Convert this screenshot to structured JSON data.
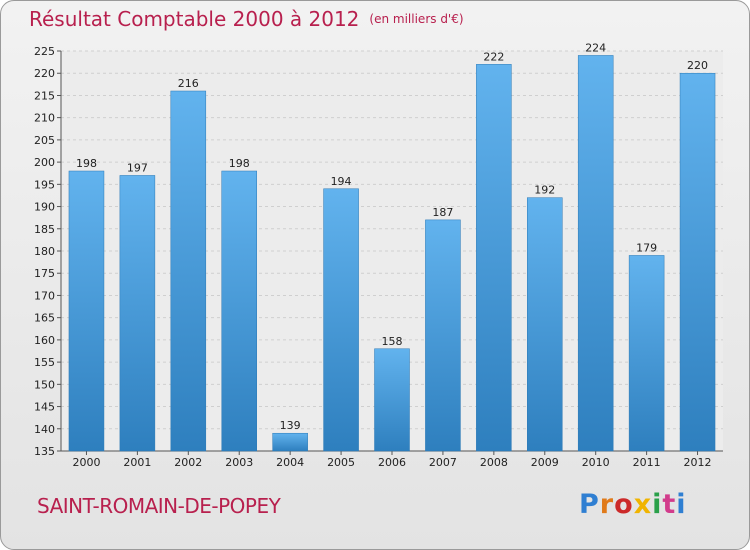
{
  "header": {
    "title": "Résultat Comptable 2000 à 2012",
    "unit": "(en milliers d'€)"
  },
  "footer": {
    "commune": "SAINT-ROMAIN-DE-POPEY",
    "logo": "Proxiti",
    "logo_colors": [
      "#2f7fd2",
      "#e07a1a",
      "#cc2a2a",
      "#f0b400",
      "#2aa04a",
      "#d23c8c",
      "#2f7fd2"
    ]
  },
  "colors": {
    "bar_top": "#62b3ee",
    "bar_bottom": "#2e7fbe",
    "title": "#b8204e"
  },
  "chart_data": {
    "type": "bar",
    "title": "Résultat Comptable 2000 à 2012",
    "xlabel": "",
    "ylabel": "",
    "ylim": [
      135,
      225
    ],
    "yticks": [
      135,
      140,
      145,
      150,
      155,
      160,
      165,
      170,
      175,
      180,
      185,
      190,
      195,
      200,
      205,
      210,
      215,
      220,
      225
    ],
    "categories": [
      "2000",
      "2001",
      "2002",
      "2003",
      "2004",
      "2005",
      "2006",
      "2007",
      "2008",
      "2009",
      "2010",
      "2011",
      "2012"
    ],
    "values": [
      198,
      197,
      216,
      198,
      139,
      194,
      158,
      187,
      222,
      192,
      224,
      179,
      220
    ],
    "grid": true
  }
}
